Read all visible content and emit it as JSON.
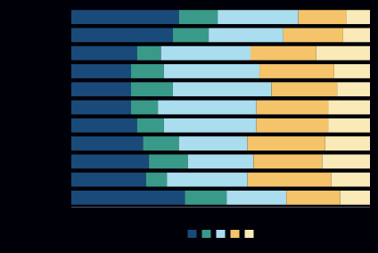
{
  "chart_data": {
    "type": "bar",
    "orientation": "horizontal",
    "stacked": true,
    "categories": [
      null,
      null,
      null,
      null,
      null,
      null,
      null,
      null,
      null,
      null,
      null
    ],
    "series": [
      {
        "color": "#1a4a7a",
        "values": [
          36,
          34,
          22,
          20,
          20,
          20,
          22,
          24,
          26,
          25,
          38
        ]
      },
      {
        "color": "#3a9a8a",
        "values": [
          13,
          12,
          8,
          11,
          14,
          9,
          9,
          12,
          13,
          7,
          14
        ]
      },
      {
        "color": "#aaddee",
        "values": [
          27,
          25,
          30,
          32,
          33,
          33,
          31,
          23,
          22,
          27,
          20
        ]
      },
      {
        "color": "#f5c46a",
        "values": [
          16,
          20,
          22,
          25,
          22,
          24,
          24,
          26,
          23,
          28,
          18
        ]
      },
      {
        "color": "#faeab8",
        "values": [
          8,
          9,
          18,
          12,
          11,
          14,
          14,
          15,
          16,
          13,
          10
        ]
      }
    ],
    "xlim": [
      0,
      100
    ],
    "tick_labels": false,
    "grid": false,
    "legend": "bottom"
  }
}
